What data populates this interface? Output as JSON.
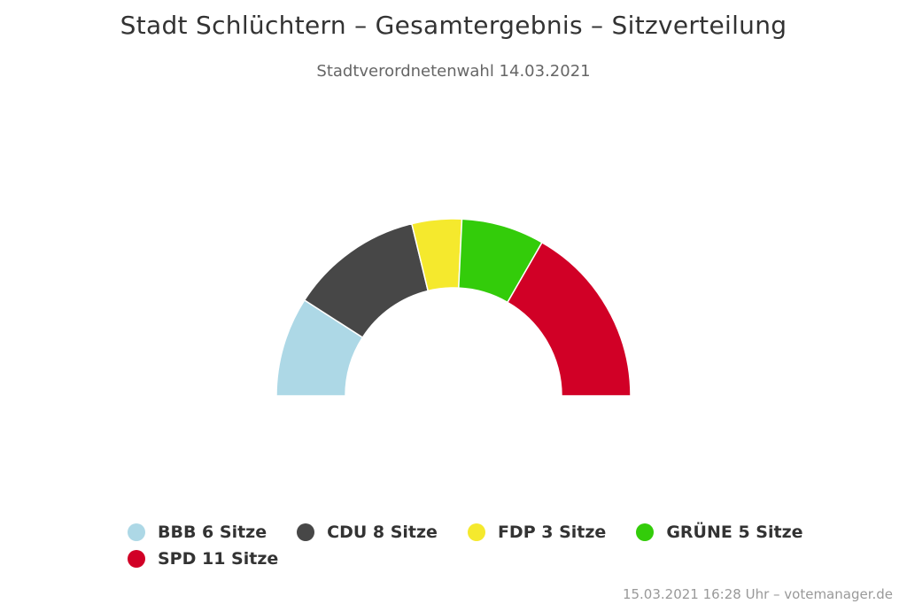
{
  "title": "Stadt Schlüchtern – Gesamtergebnis – Sitzverteilung",
  "subtitle": "Stadtverordnetenwahl 14.03.2021",
  "credits": "15.03.2021 16:28 Uhr – votemanager.de",
  "chart_data": {
    "type": "pie",
    "variant": "semicircle-donut",
    "title": "Stadt Schlüchtern – Gesamtergebnis – Sitzverteilung",
    "subtitle": "Stadtverordnetenwahl 14.03.2021",
    "unit": "Sitze",
    "legend_position": "bottom",
    "slices": [
      {
        "name": "BBB",
        "value": 6,
        "color": "#ADD8E6"
      },
      {
        "name": "CDU",
        "value": 8,
        "color": "#474747"
      },
      {
        "name": "FDP",
        "value": 3,
        "color": "#F5E92D"
      },
      {
        "name": "GRÜNE",
        "value": 5,
        "color": "#33CC0A"
      },
      {
        "name": "SPD",
        "value": 11,
        "color": "#D10026"
      }
    ]
  },
  "legend": {
    "rows": [
      [
        {
          "label": "BBB 6 Sitze",
          "color": "#ADD8E6"
        },
        {
          "label": "CDU 8 Sitze",
          "color": "#474747"
        },
        {
          "label": "FDP 3 Sitze",
          "color": "#F5E92D"
        },
        {
          "label": "GRÜNE 5 Sitze",
          "color": "#33CC0A"
        }
      ],
      [
        {
          "label": "SPD 11 Sitze",
          "color": "#D10026"
        }
      ]
    ]
  }
}
